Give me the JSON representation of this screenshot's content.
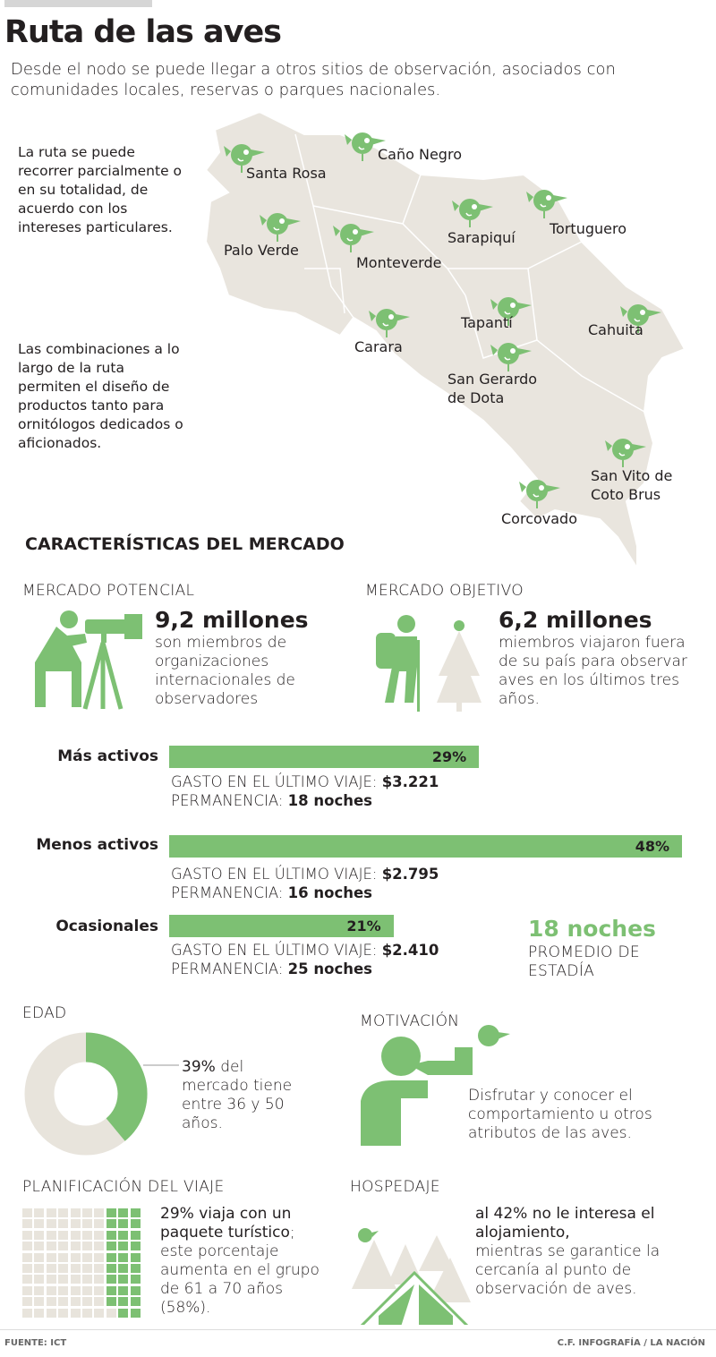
{
  "header": {
    "title": "Ruta de las aves",
    "subtitle": "Desde el nodo se puede llegar a otros sitios de observación, asociados con comunidades locales, reservas o parques nacionales."
  },
  "side_text": [
    "La ruta se puede recorrer parcialmente o en su totalidad, de acuerdo con los intereses particulares.",
    "Las combinaciones a lo largo de la ruta permiten el diseño de productos tanto para ornitólogos dedicados o aficionados."
  ],
  "map": {
    "places": [
      "Santa Rosa",
      "Caño Negro",
      "Palo Verde",
      "Monteverde",
      "Sarapiquí",
      "Tortuguero",
      "Carara",
      "Tapantí",
      "Cahuita",
      "San Gerardo de Dota",
      "San Vito de Coto Brus",
      "Corcovado"
    ],
    "icon": "bird-marker-icon"
  },
  "market": {
    "title": "CARACTERÍSTICAS DEL MERCADO",
    "potential": {
      "label": "MERCADO POTENCIAL",
      "value": "9,2 millones",
      "text": "son miembros de organizaciones internacionales de observadores",
      "icon": "birdwatcher-telescope-icon"
    },
    "target": {
      "label": "MERCADO OBJETIVO",
      "value": "6,2 millones",
      "text": "miembros viajaron fuera de su país para observar aves en los últimos tres años.",
      "icon": "hiker-icon"
    },
    "segments": [
      {
        "name": "Más activos",
        "percent": 29,
        "percent_label": "29%",
        "spend_label": "GASTO EN EL ÚLTIMO VIAJE:",
        "spend": "$3.221",
        "stay_label": "PERMANENCIA:",
        "stay": "18 noches"
      },
      {
        "name": "Menos activos",
        "percent": 48,
        "percent_label": "48%",
        "spend_label": "GASTO EN EL ÚLTIMO VIAJE:",
        "spend": "$2.795",
        "stay_label": "PERMANENCIA:",
        "stay": "16 noches"
      },
      {
        "name": "Ocasionales",
        "percent": 21,
        "percent_label": "21%",
        "spend_label": "GASTO EN EL ÚLTIMO VIAJE:",
        "spend": "$2.410",
        "stay_label": "PERMANENCIA:",
        "stay": "25 noches"
      }
    ],
    "average": {
      "value": "18 noches",
      "label": "PROMEDIO DE ESTADÍA"
    }
  },
  "age": {
    "label": "EDAD",
    "percent": 39,
    "percent_label": "39%",
    "text": "del mercado tiene entre 36 y 50 años."
  },
  "motivation": {
    "label": "MOTIVACIÓN",
    "text": "Disfrutar y conocer el comportamiento u otros atributos de las aves."
  },
  "planning": {
    "label": "PLANIFICACIÓN DEL VIAJE",
    "percent": 29,
    "bold": "29% viaja con un paquete turístico",
    "text": "; este porcentaje aumenta en el grupo de 61 a 70 años (58%)."
  },
  "lodging": {
    "label": "HOSPEDAJE",
    "bold": "al 42% no le interesa el alojamiento,",
    "text": "mientras se garantice la cercanía al punto de observación de aves."
  },
  "footer": {
    "source": "FUENTE: ICT",
    "credit": "C.F. INFOGRAFÍA / LA NACIÓN"
  },
  "colors": {
    "green": "#7dc073",
    "beige": "#e8e4dc"
  }
}
